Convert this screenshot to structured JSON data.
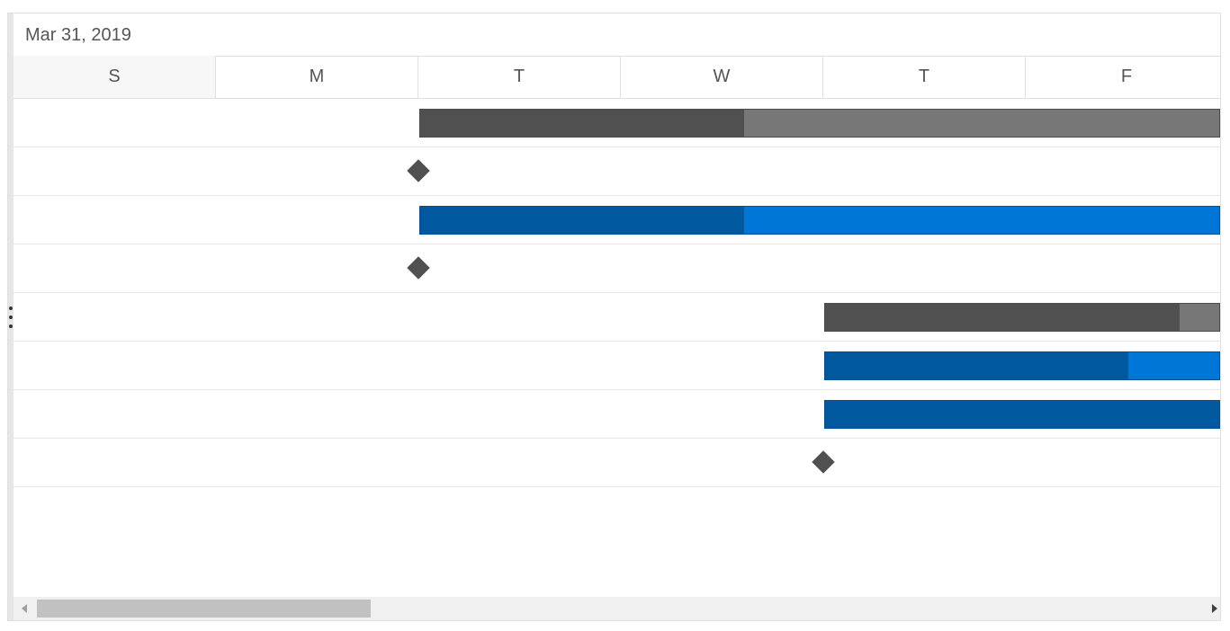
{
  "timeline": {
    "week_label": "Mar 31, 2019",
    "days": [
      "S",
      "M",
      "T",
      "W",
      "T",
      "F"
    ]
  },
  "tasks": [
    {
      "type": "parent",
      "start_day": 2.0,
      "end_day": 6.0,
      "progress": 0.405
    },
    {
      "type": "milestone",
      "day": 2.0
    },
    {
      "type": "child",
      "start_day": 2.0,
      "end_day": 6.0,
      "progress": 0.405
    },
    {
      "type": "milestone",
      "day": 2.0
    },
    {
      "type": "parent",
      "start_day": 4.0,
      "end_day": 6.0,
      "progress": 0.9
    },
    {
      "type": "child",
      "start_day": 4.0,
      "end_day": 6.0,
      "progress": 0.77
    },
    {
      "type": "child",
      "start_day": 4.0,
      "end_day": 6.0,
      "progress": 1.0
    },
    {
      "type": "milestone",
      "day": 4.0
    }
  ],
  "scrollbar": {
    "position": 0.0,
    "visible_fraction": 0.28
  },
  "colors": {
    "parent_bar": "#777777",
    "parent_progress": "#505050",
    "child_bar": "#0076d6",
    "child_progress": "#00589e",
    "milestone": "#505050",
    "weekend_background": "#f7f7f7"
  }
}
